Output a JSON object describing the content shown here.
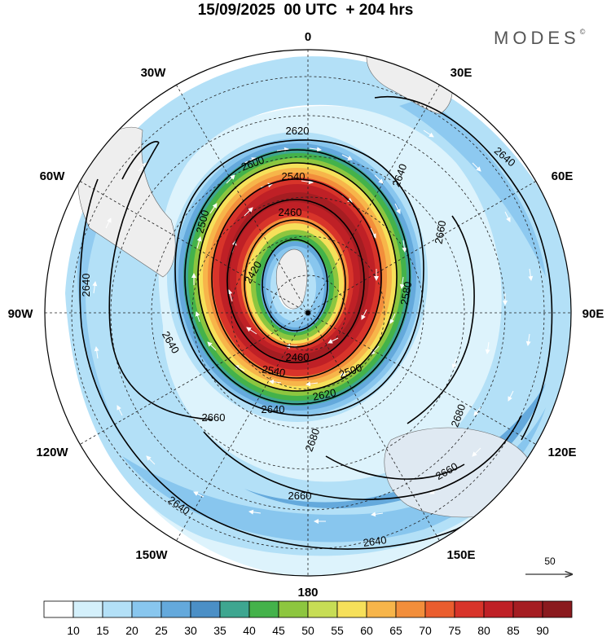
{
  "header": {
    "title": "15/09/2025  00 UTC  + 204 hrs",
    "brand": "MODES",
    "brand_mark": "©"
  },
  "map": {
    "projection": "south-polar-stereographic",
    "longitude_labels": [
      {
        "text": "0",
        "lon": 0
      },
      {
        "text": "30E",
        "lon": 30
      },
      {
        "text": "60E",
        "lon": 60
      },
      {
        "text": "90E",
        "lon": 90
      },
      {
        "text": "120E",
        "lon": 120
      },
      {
        "text": "150E",
        "lon": 150
      },
      {
        "text": "180",
        "lon": 180
      },
      {
        "text": "150W",
        "lon": -150
      },
      {
        "text": "120W",
        "lon": -120
      },
      {
        "text": "90W",
        "lon": -90
      },
      {
        "text": "60W",
        "lon": -60
      },
      {
        "text": "30W",
        "lon": -30
      }
    ],
    "contour_labels": [
      "2420",
      "2460",
      "2500",
      "2540",
      "2580",
      "2600",
      "2620",
      "2640",
      "2660",
      "2680"
    ],
    "reference_vector": {
      "label": "50",
      "value": 50
    }
  },
  "colorbar": {
    "levels": [
      "10",
      "15",
      "20",
      "25",
      "30",
      "35",
      "40",
      "45",
      "50",
      "55",
      "60",
      "65",
      "70",
      "75",
      "80",
      "85",
      "90"
    ],
    "colors": [
      "#ffffff",
      "#d4f0fb",
      "#b3e0f7",
      "#88c6ee",
      "#64a9dc",
      "#4b8fc6",
      "#3ea690",
      "#44b24a",
      "#8dc63f",
      "#c7dd55",
      "#f6e05a",
      "#f7b54a",
      "#f28e3b",
      "#ea5d2e",
      "#d8342a",
      "#bf2026",
      "#a51d22",
      "#8a1a1e"
    ]
  }
}
